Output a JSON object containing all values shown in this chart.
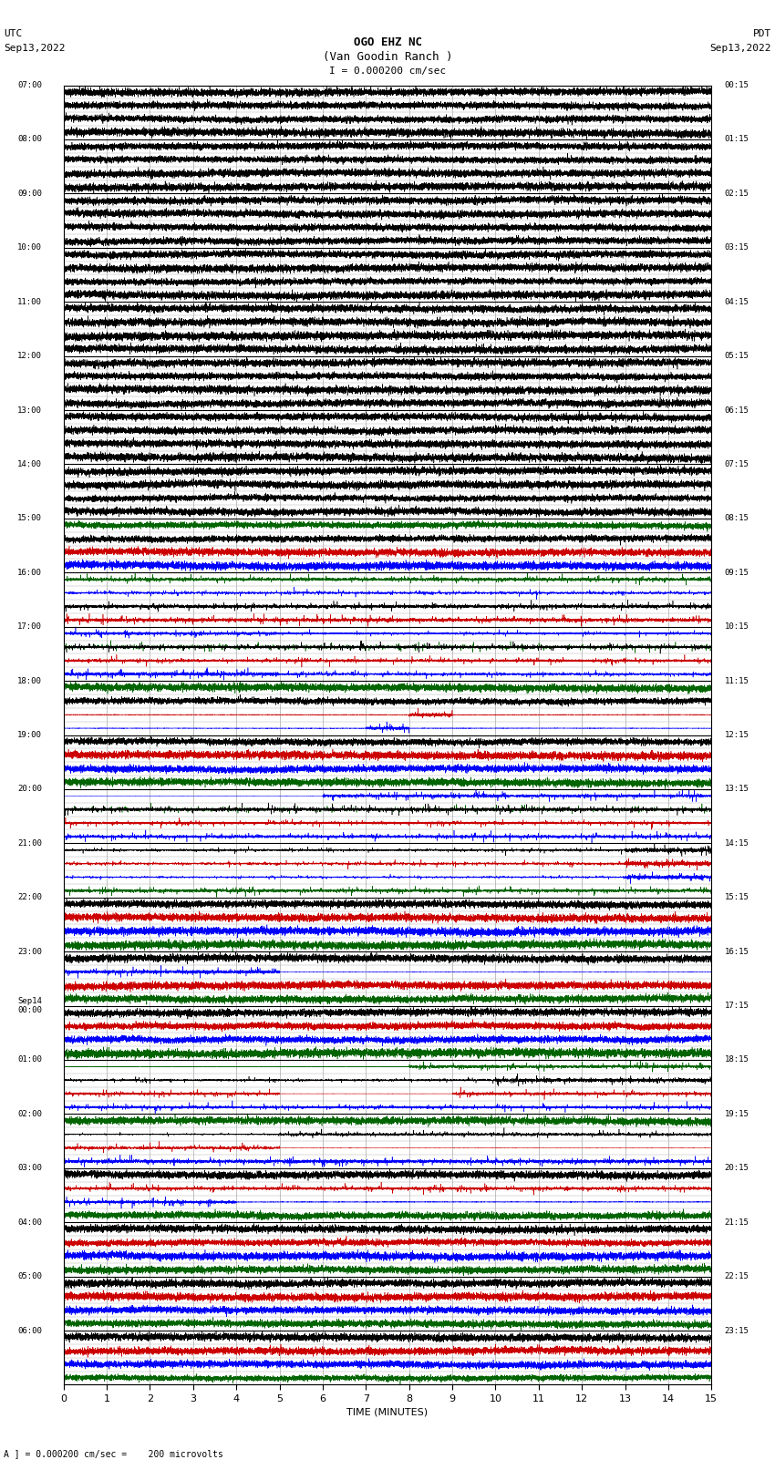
{
  "title_line1": "OGO EHZ NC",
  "title_line2": "(Van Goodin Ranch )",
  "title_line3": "I = 0.000200 cm/sec",
  "utc_label": "UTC",
  "utc_date": "Sep13,2022",
  "pdt_label": "PDT",
  "pdt_date": "Sep13,2022",
  "xlabel": "TIME (MINUTES)",
  "footer": "A ] = 0.000200 cm/sec =    200 microvolts",
  "xlim": [
    0,
    15
  ],
  "xticks": [
    0,
    1,
    2,
    3,
    4,
    5,
    6,
    7,
    8,
    9,
    10,
    11,
    12,
    13,
    14,
    15
  ],
  "utc_times": [
    "07:00",
    "08:00",
    "09:00",
    "10:00",
    "11:00",
    "12:00",
    "13:00",
    "14:00",
    "15:00",
    "16:00",
    "17:00",
    "18:00",
    "19:00",
    "20:00",
    "21:00",
    "22:00",
    "23:00",
    "Sep14\n00:00",
    "01:00",
    "02:00",
    "03:00",
    "04:00",
    "05:00",
    "06:00"
  ],
  "pdt_times": [
    "00:15",
    "01:15",
    "02:15",
    "03:15",
    "04:15",
    "05:15",
    "06:15",
    "07:15",
    "08:15",
    "09:15",
    "10:15",
    "11:15",
    "12:15",
    "13:15",
    "14:15",
    "15:15",
    "16:15",
    "17:15",
    "18:15",
    "19:15",
    "20:15",
    "21:15",
    "22:15",
    "23:15"
  ],
  "n_rows": 24,
  "bg_color": "white",
  "grid_major_color": "#000000",
  "grid_minor_color": "#aaaaaa",
  "trace_lw": 0.4
}
